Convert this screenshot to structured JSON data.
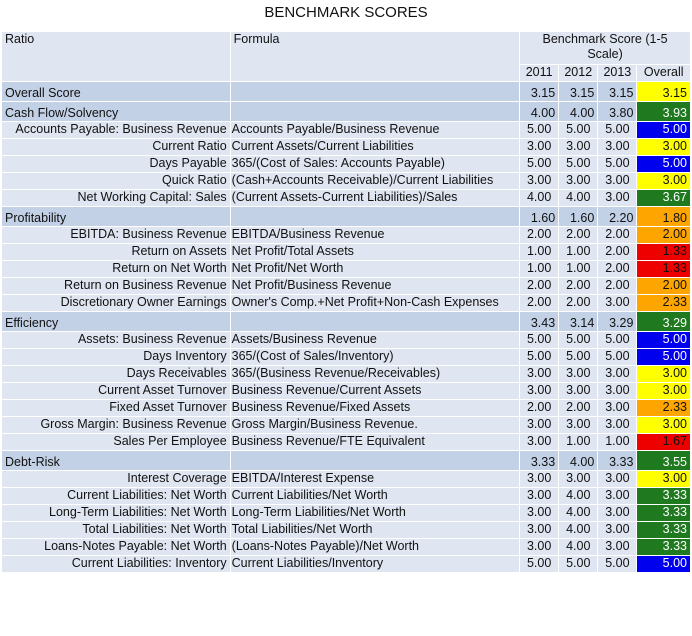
{
  "title": "BENCHMARK SCORES",
  "header": {
    "ratio": "Ratio",
    "formula": "Formula",
    "benchmark": "Benchmark Score (1-5 Scale)",
    "years": [
      "2011",
      "2012",
      "2013",
      "Overall"
    ]
  },
  "rows": [
    {
      "type": "sec",
      "label": "Overall Score",
      "formula": "",
      "v": [
        "3.15",
        "3.15",
        "3.15",
        "3.15"
      ],
      "color": "y"
    },
    {
      "type": "sec",
      "label": "Cash Flow/Solvency",
      "formula": "",
      "v": [
        "4.00",
        "4.00",
        "3.80",
        "3.93"
      ],
      "color": "g"
    },
    {
      "type": "item",
      "label": "Accounts Payable: Business Revenue",
      "formula": "Accounts Payable/Business Revenue",
      "v": [
        "5.00",
        "5.00",
        "5.00",
        "5.00"
      ],
      "color": "b",
      "wrapLabel": true
    },
    {
      "type": "item",
      "label": "Current Ratio",
      "formula": "Current Assets/Current Liabilities",
      "v": [
        "3.00",
        "3.00",
        "3.00",
        "3.00"
      ],
      "color": "y"
    },
    {
      "type": "item",
      "label": "Days Payable",
      "formula": "365/(Cost of Sales: Accounts Payable)",
      "v": [
        "5.00",
        "5.00",
        "5.00",
        "5.00"
      ],
      "color": "b"
    },
    {
      "type": "item",
      "label": "Quick Ratio",
      "formula": "(Cash+Accounts Receivable)/Current Liabilities",
      "v": [
        "3.00",
        "3.00",
        "3.00",
        "3.00"
      ],
      "color": "y",
      "wrapFormula": true
    },
    {
      "type": "item",
      "label": "Net Working Capital: Sales",
      "formula": "(Current Assets-Current Liabilities)/Sales",
      "v": [
        "4.00",
        "4.00",
        "3.00",
        "3.67"
      ],
      "color": "g"
    },
    {
      "type": "sec",
      "label": "Profitability",
      "formula": "",
      "v": [
        "1.60",
        "1.60",
        "2.20",
        "1.80"
      ],
      "color": "o"
    },
    {
      "type": "item",
      "label": "EBITDA: Business Revenue",
      "formula": "EBITDA/Business Revenue",
      "v": [
        "2.00",
        "2.00",
        "2.00",
        "2.00"
      ],
      "color": "o"
    },
    {
      "type": "item",
      "label": "Return on Assets",
      "formula": "Net Profit/Total Assets",
      "v": [
        "1.00",
        "1.00",
        "2.00",
        "1.33"
      ],
      "color": "red"
    },
    {
      "type": "item",
      "label": "Return on Net Worth",
      "formula": "Net Profit/Net Worth",
      "v": [
        "1.00",
        "1.00",
        "2.00",
        "1.33"
      ],
      "color": "red"
    },
    {
      "type": "item",
      "label": "Return on Business Revenue",
      "formula": "Net Profit/Business Revenue",
      "v": [
        "2.00",
        "2.00",
        "2.00",
        "2.00"
      ],
      "color": "o"
    },
    {
      "type": "item",
      "label": "Discretionary Owner Earnings",
      "formula": "Owner's Comp.+Net Profit+Non-Cash Expenses",
      "v": [
        "2.00",
        "2.00",
        "3.00",
        "2.33"
      ],
      "color": "o",
      "wrapFormula": true
    },
    {
      "type": "sec",
      "label": "Efficiency",
      "formula": "",
      "v": [
        "3.43",
        "3.14",
        "3.29",
        "3.29"
      ],
      "color": "g"
    },
    {
      "type": "item",
      "label": "Assets: Business Revenue",
      "formula": "Assets/Business Revenue",
      "v": [
        "5.00",
        "5.00",
        "5.00",
        "5.00"
      ],
      "color": "b"
    },
    {
      "type": "item",
      "label": "Days Inventory",
      "formula": "365/(Cost of Sales/Inventory)",
      "v": [
        "5.00",
        "5.00",
        "5.00",
        "5.00"
      ],
      "color": "b"
    },
    {
      "type": "item",
      "label": "Days Receivables",
      "formula": "365/(Business Revenue/Receivables)",
      "v": [
        "3.00",
        "3.00",
        "3.00",
        "3.00"
      ],
      "color": "y"
    },
    {
      "type": "item",
      "label": "Current Asset Turnover",
      "formula": "Business Revenue/Current Assets",
      "v": [
        "3.00",
        "3.00",
        "3.00",
        "3.00"
      ],
      "color": "y"
    },
    {
      "type": "item",
      "label": "Fixed Asset Turnover",
      "formula": "Business Revenue/Fixed Assets",
      "v": [
        "2.00",
        "2.00",
        "3.00",
        "2.33"
      ],
      "color": "o"
    },
    {
      "type": "item",
      "label": "Gross Margin: Business Revenue",
      "formula": "Gross Margin/Business Revenue.",
      "v": [
        "3.00",
        "3.00",
        "3.00",
        "3.00"
      ],
      "color": "y"
    },
    {
      "type": "item",
      "label": "Sales Per Employee",
      "formula": "Business Revenue/FTE Equivalent",
      "v": [
        "3.00",
        "1.00",
        "1.00",
        "1.67"
      ],
      "color": "red"
    },
    {
      "type": "sec",
      "label": "Debt-Risk",
      "formula": "",
      "v": [
        "3.33",
        "4.00",
        "3.33",
        "3.55"
      ],
      "color": "g"
    },
    {
      "type": "item",
      "label": "Interest Coverage",
      "formula": "EBITDA/Interest Expense",
      "v": [
        "3.00",
        "3.00",
        "3.00",
        "3.00"
      ],
      "color": "y"
    },
    {
      "type": "item",
      "label": "Current Liabilities: Net Worth",
      "formula": "Current Liabilities/Net Worth",
      "v": [
        "3.00",
        "4.00",
        "3.00",
        "3.33"
      ],
      "color": "g"
    },
    {
      "type": "item",
      "label": "Long-Term Liabilities: Net Worth",
      "formula": "Long-Term Liabilities/Net Worth",
      "v": [
        "3.00",
        "4.00",
        "3.00",
        "3.33"
      ],
      "color": "g"
    },
    {
      "type": "item",
      "label": "Total Liabilities: Net Worth",
      "formula": "Total Liabilities/Net Worth",
      "v": [
        "3.00",
        "4.00",
        "3.00",
        "3.33"
      ],
      "color": "g"
    },
    {
      "type": "item",
      "label": "Loans-Notes Payable: Net Worth",
      "formula": "(Loans-Notes Payable)/Net Worth",
      "v": [
        "3.00",
        "4.00",
        "3.00",
        "3.33"
      ],
      "color": "g"
    },
    {
      "type": "item",
      "label": "Current Liabilities: Inventory",
      "formula": "Current Liabilities/Inventory",
      "v": [
        "5.00",
        "5.00",
        "5.00",
        "5.00"
      ],
      "color": "b"
    }
  ],
  "colors": {
    "y": "#ffff00",
    "g": "#1f7a1f",
    "b": "#0000ee",
    "o": "#ffa500",
    "red": "#ee0000"
  }
}
